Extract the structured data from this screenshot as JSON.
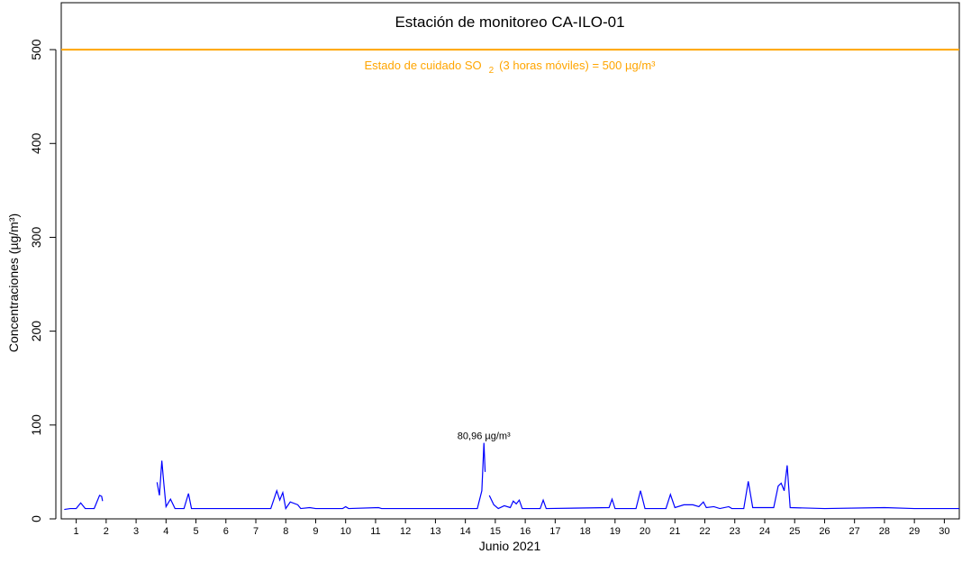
{
  "chart_data": {
    "type": "line",
    "title": "Estación de monitoreo  CA-ILO-01",
    "x_label": "Junio 2021",
    "y_label": "Concentraciones (µg/m³)",
    "xlim": [
      0.5,
      30.5
    ],
    "xticks": [
      1,
      2,
      3,
      4,
      5,
      6,
      7,
      8,
      9,
      10,
      11,
      12,
      13,
      14,
      15,
      16,
      17,
      18,
      19,
      20,
      21,
      22,
      23,
      24,
      25,
      26,
      27,
      28,
      29,
      30
    ],
    "ylim": [
      0,
      550
    ],
    "yticks": [
      0,
      100,
      200,
      300,
      400,
      500
    ],
    "series": [
      {
        "color": "#0000ff",
        "x": [
          0.6,
          0.8,
          1.0,
          1.15,
          1.3,
          1.6,
          1.78,
          1.85,
          1.88,
          2.5,
          3.7,
          3.78,
          3.86,
          3.92,
          4.0,
          4.15,
          4.3,
          4.6,
          4.75,
          4.85,
          6,
          7.5,
          7.7,
          7.8,
          7.9,
          8.0,
          8.15,
          8.4,
          8.5,
          8.8,
          9.0,
          9.9,
          10.0,
          10.1,
          11.1,
          11.2,
          13,
          14.4,
          14.55,
          14.62,
          14.66,
          14.7,
          14.8,
          14.95,
          15.1,
          15.3,
          15.5,
          15.6,
          15.7,
          15.8,
          15.9,
          16.5,
          16.6,
          16.7,
          18.8,
          18.9,
          19.0,
          19.7,
          19.85,
          20.0,
          20.7,
          20.85,
          21.0,
          21.3,
          21.6,
          21.8,
          21.95,
          22.05,
          22.3,
          22.5,
          22.8,
          22.9,
          23.3,
          23.45,
          23.6,
          24.3,
          24.45,
          24.55,
          24.65,
          24.75,
          24.85,
          26,
          28,
          29,
          30.5
        ],
        "values": [
          10,
          11,
          11,
          17,
          11,
          11,
          25,
          24,
          19,
          null,
          39,
          25,
          62,
          40,
          13,
          21,
          11,
          11,
          27,
          11,
          11,
          11,
          30,
          20,
          28,
          11,
          18,
          15,
          11,
          12,
          11,
          11,
          13,
          11,
          12,
          11,
          11,
          11,
          30,
          80.96,
          50,
          null,
          25,
          15,
          11,
          14,
          12,
          19,
          16,
          20,
          11,
          11,
          20,
          11,
          12,
          21,
          11,
          11,
          30,
          11,
          11,
          26,
          12,
          15,
          15,
          13,
          18,
          12,
          13,
          11,
          13,
          11,
          11,
          40,
          12,
          12,
          35,
          38,
          30,
          57,
          12,
          11,
          12,
          11,
          11
        ]
      }
    ],
    "threshold": {
      "value": 500,
      "color": "#ffa500",
      "label": "Estado de cuidado SO",
      "label_subscript": "2",
      "label_rest": "(3 horas móviles) = 500 µg/m³"
    },
    "annotations": [
      {
        "text": "80,96 µg/m³",
        "x": 14.62,
        "y": 80.96
      }
    ]
  }
}
